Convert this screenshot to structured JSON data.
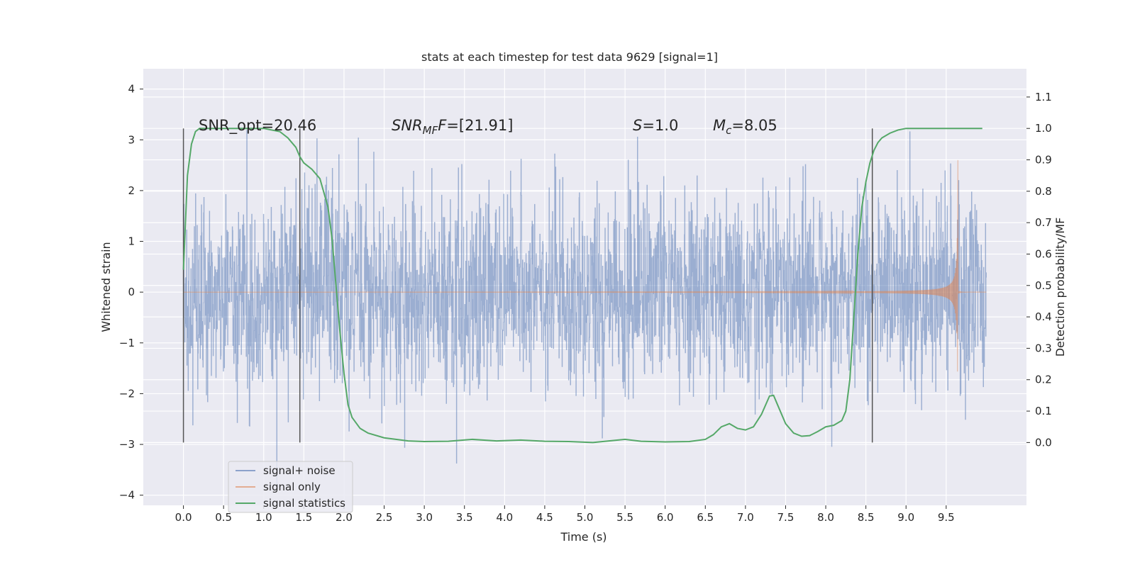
{
  "chart_data": {
    "type": "line",
    "title": "stats at each timestep for test data 9629 [signal=1]",
    "xlabel": "Time (s)",
    "ylabel": "Whitened strain",
    "y2label": "Detection probability/MF",
    "xlim": [
      -0.5,
      10.5
    ],
    "ylim": [
      -4.2,
      4.4
    ],
    "y2lim": [
      -0.2,
      1.19
    ],
    "x_ticks": [
      "0.0",
      "0.5",
      "1.0",
      "1.5",
      "2.0",
      "2.5",
      "3.0",
      "3.5",
      "4.0",
      "4.5",
      "5.0",
      "5.5",
      "6.0",
      "6.5",
      "7.0",
      "7.5",
      "8.0",
      "8.5",
      "9.0",
      "9.5"
    ],
    "y_ticks": [
      "−4",
      "−3",
      "−2",
      "−1",
      "0",
      "1",
      "2",
      "3",
      "4"
    ],
    "y2_ticks": [
      "0.0",
      "0.1",
      "0.2",
      "0.3",
      "0.4",
      "0.5",
      "0.6",
      "0.7",
      "0.8",
      "0.9",
      "1.0",
      "1.1"
    ],
    "grid": true,
    "legend_placement": "lower-left",
    "series": [
      {
        "name": "signal+ noise",
        "color": "#4c72b0",
        "axis": "left",
        "x_range": [
          0,
          10
        ],
        "amplitude_rms": 1.0
      },
      {
        "name": "signal only",
        "color": "#dd8452",
        "axis": "left",
        "x_range": [
          0,
          9.65
        ],
        "chirp_peak_amplitude": 2.6,
        "merger_time": 9.65
      },
      {
        "name": "signal statistics",
        "color": "#55a868",
        "axis": "right",
        "x": [
          0.0,
          0.05,
          0.1,
          0.15,
          0.2,
          0.3,
          0.5,
          0.8,
          1.0,
          1.2,
          1.3,
          1.4,
          1.45,
          1.5,
          1.6,
          1.7,
          1.8,
          1.85,
          1.9,
          1.95,
          2.0,
          2.05,
          2.1,
          2.2,
          2.3,
          2.5,
          2.8,
          3.0,
          3.3,
          3.6,
          3.9,
          4.2,
          4.5,
          4.8,
          5.1,
          5.3,
          5.5,
          5.7,
          6.0,
          6.3,
          6.5,
          6.6,
          6.7,
          6.8,
          6.9,
          7.0,
          7.1,
          7.2,
          7.3,
          7.35,
          7.4,
          7.5,
          7.6,
          7.7,
          7.8,
          7.9,
          8.0,
          8.1,
          8.2,
          8.25,
          8.3,
          8.35,
          8.4,
          8.45,
          8.5,
          8.55,
          8.6,
          8.65,
          8.7,
          8.8,
          8.9,
          9.0,
          9.1,
          9.3,
          9.5,
          9.7,
          9.95
        ],
        "y": [
          0.55,
          0.85,
          0.95,
          0.99,
          1.0,
          1.0,
          1.0,
          1.0,
          1.0,
          0.99,
          0.97,
          0.94,
          0.91,
          0.89,
          0.87,
          0.84,
          0.75,
          0.65,
          0.5,
          0.35,
          0.22,
          0.12,
          0.08,
          0.045,
          0.03,
          0.015,
          0.005,
          0.003,
          0.004,
          0.01,
          0.005,
          0.008,
          0.004,
          0.003,
          0.0,
          0.005,
          0.01,
          0.004,
          0.002,
          0.003,
          0.01,
          0.025,
          0.05,
          0.06,
          0.045,
          0.04,
          0.05,
          0.09,
          0.148,
          0.15,
          0.12,
          0.06,
          0.03,
          0.02,
          0.022,
          0.035,
          0.05,
          0.055,
          0.07,
          0.1,
          0.2,
          0.4,
          0.6,
          0.75,
          0.83,
          0.89,
          0.93,
          0.955,
          0.97,
          0.985,
          0.995,
          1.0,
          1.0,
          1.0,
          1.0,
          1.0,
          1.0
        ]
      }
    ],
    "vertical_lines": [
      0.0,
      1.45,
      8.58
    ],
    "annotations": [
      {
        "text": "SNR_opt=20.46",
        "x": 0.2
      },
      {
        "text_main": "SNR",
        "text_sub": "MF",
        "text_rest": "=[21.91]",
        "x": 2.6
      },
      {
        "text_main": "S",
        "text_rest": "=1.0",
        "x": 5.6
      },
      {
        "text_main": "M",
        "text_sub": "c",
        "text_rest": "=8.05",
        "x": 6.6
      }
    ]
  }
}
